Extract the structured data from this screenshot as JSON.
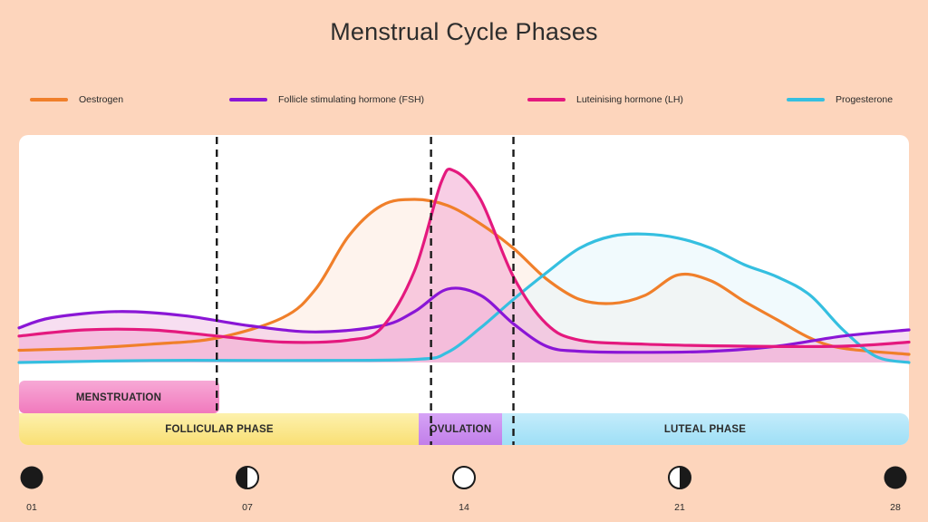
{
  "title": "Menstrual Cycle Phases",
  "legend": [
    {
      "label": "Oestrogen",
      "color": "#f07f2a"
    },
    {
      "label": "Follicle stimulating hormone (FSH)",
      "color": "#8a16d6"
    },
    {
      "label": "Luteinising hormone (LH)",
      "color": "#e4197e"
    },
    {
      "label": "Progesterone",
      "color": "#35bfe0"
    }
  ],
  "phases": {
    "menstruation": "MENSTRUATION",
    "follicular": "FOLLICULAR PHASE",
    "ovulation": "OVULATION",
    "luteal": "LUTEAL PHASE"
  },
  "moon_phases": [
    {
      "day": "01",
      "phase": "new-moon"
    },
    {
      "day": "07",
      "phase": "first-quarter-moon"
    },
    {
      "day": "14",
      "phase": "full-moon"
    },
    {
      "day": "21",
      "phase": "last-quarter-moon"
    },
    {
      "day": "28",
      "phase": "new-moon"
    }
  ],
  "chart_data": {
    "type": "line",
    "title": "Menstrual Cycle Phases",
    "xlabel": "",
    "ylabel": "",
    "xlim": [
      1,
      28
    ],
    "ylim": [
      0,
      100
    ],
    "grid": false,
    "legend_position": "top",
    "boundaries_day": [
      7,
      13.5,
      16
    ],
    "series": [
      {
        "name": "Oestrogen",
        "color": "#f07f2a",
        "fill": "#fdeadf",
        "points": [
          [
            1,
            6
          ],
          [
            3,
            7
          ],
          [
            5,
            9
          ],
          [
            7,
            12
          ],
          [
            9,
            22
          ],
          [
            10,
            36
          ],
          [
            11,
            62
          ],
          [
            12,
            77
          ],
          [
            13,
            80
          ],
          [
            14,
            77
          ],
          [
            15,
            68
          ],
          [
            16,
            56
          ],
          [
            17,
            41
          ],
          [
            18,
            31
          ],
          [
            19,
            29
          ],
          [
            20,
            33
          ],
          [
            21,
            43
          ],
          [
            22,
            40
          ],
          [
            23,
            30
          ],
          [
            24,
            21
          ],
          [
            25,
            12
          ],
          [
            26,
            7
          ],
          [
            28,
            4
          ]
        ]
      },
      {
        "name": "Progesterone",
        "color": "#35bfe0",
        "fill": "#e5f5fb",
        "points": [
          [
            1,
            0
          ],
          [
            5,
            1
          ],
          [
            9,
            1
          ],
          [
            13,
            1.5
          ],
          [
            14,
            5
          ],
          [
            15,
            17
          ],
          [
            16,
            31
          ],
          [
            17,
            44
          ],
          [
            18,
            56
          ],
          [
            19,
            62
          ],
          [
            20,
            63
          ],
          [
            21,
            61
          ],
          [
            22,
            56
          ],
          [
            23,
            48
          ],
          [
            24,
            42
          ],
          [
            25,
            33
          ],
          [
            26,
            16
          ],
          [
            27,
            3
          ],
          [
            28,
            0
          ]
        ]
      },
      {
        "name": "Follicle stimulating hormone (FSH)",
        "color": "#8a16d6",
        "fill": "#f0c2e6",
        "points": [
          [
            1,
            17
          ],
          [
            2,
            22
          ],
          [
            4,
            25
          ],
          [
            6,
            23
          ],
          [
            8,
            18
          ],
          [
            10,
            15
          ],
          [
            12,
            18
          ],
          [
            13,
            25
          ],
          [
            14,
            36
          ],
          [
            15,
            33
          ],
          [
            16,
            19
          ],
          [
            17,
            8
          ],
          [
            18,
            5.5
          ],
          [
            20,
            5
          ],
          [
            22,
            5.5
          ],
          [
            24,
            8
          ],
          [
            26,
            13
          ],
          [
            28,
            16
          ]
        ]
      },
      {
        "name": "Luteinising hormone (LH)",
        "color": "#e4197e",
        "fill": "#f2a6cf",
        "points": [
          [
            1,
            13
          ],
          [
            3,
            16
          ],
          [
            5,
            16
          ],
          [
            7,
            13
          ],
          [
            9,
            10
          ],
          [
            11,
            11
          ],
          [
            12,
            17
          ],
          [
            13,
            45
          ],
          [
            13.8,
            88
          ],
          [
            14.2,
            94
          ],
          [
            15,
            80
          ],
          [
            16,
            42
          ],
          [
            17,
            19
          ],
          [
            18,
            11
          ],
          [
            20,
            9
          ],
          [
            23,
            8
          ],
          [
            26,
            8
          ],
          [
            28,
            10
          ]
        ]
      }
    ]
  }
}
